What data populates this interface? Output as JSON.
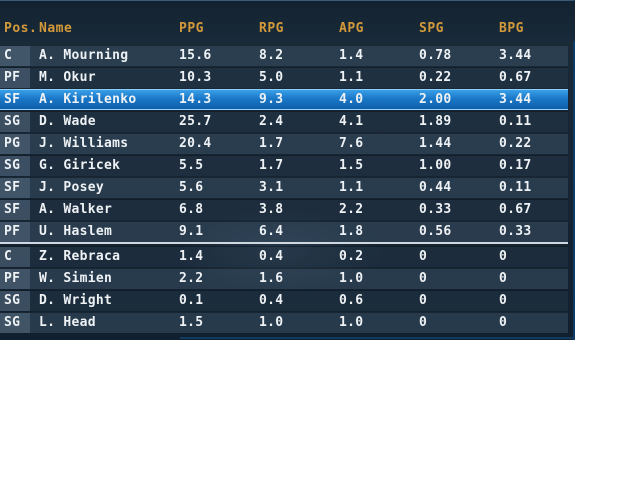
{
  "headers": {
    "pos": "Pos.",
    "name": "Name",
    "ppg": "PPG",
    "rpg": "RPG",
    "apg": "APG",
    "spg": "SPG",
    "bpg": "BPG"
  },
  "selected_index": 2,
  "colors": {
    "header_text": "#d49a3a",
    "selection": "#1a78c8",
    "row_text": "#eef2f5"
  },
  "rows": [
    {
      "pos": "C",
      "name": "A. Mourning",
      "ppg": "15.6",
      "rpg": "8.2",
      "apg": "1.4",
      "spg": "0.78",
      "bpg": "3.44"
    },
    {
      "pos": "PF",
      "name": "M. Okur",
      "ppg": "10.3",
      "rpg": "5.0",
      "apg": "1.1",
      "spg": "0.22",
      "bpg": "0.67"
    },
    {
      "pos": "SF",
      "name": "A. Kirilenko",
      "ppg": "14.3",
      "rpg": "9.3",
      "apg": "4.0",
      "spg": "2.00",
      "bpg": "3.44"
    },
    {
      "pos": "SG",
      "name": "D. Wade",
      "ppg": "25.7",
      "rpg": "2.4",
      "apg": "4.1",
      "spg": "1.89",
      "bpg": "0.11"
    },
    {
      "pos": "PG",
      "name": "J. Williams",
      "ppg": "20.4",
      "rpg": "1.7",
      "apg": "7.6",
      "spg": "1.44",
      "bpg": "0.22"
    },
    {
      "pos": "SG",
      "name": "G. Giricek",
      "ppg": "5.5",
      "rpg": "1.7",
      "apg": "1.5",
      "spg": "1.00",
      "bpg": "0.17"
    },
    {
      "pos": "SF",
      "name": "J. Posey",
      "ppg": "5.6",
      "rpg": "3.1",
      "apg": "1.1",
      "spg": "0.44",
      "bpg": "0.11"
    },
    {
      "pos": "SF",
      "name": "A. Walker",
      "ppg": "6.8",
      "rpg": "3.8",
      "apg": "2.2",
      "spg": "0.33",
      "bpg": "0.67"
    },
    {
      "pos": "PF",
      "name": "U. Haslem",
      "ppg": "9.1",
      "rpg": "6.4",
      "apg": "1.8",
      "spg": "0.56",
      "bpg": "0.33"
    },
    {
      "pos": "C",
      "name": "Z. Rebraca",
      "ppg": "1.4",
      "rpg": "0.4",
      "apg": "0.2",
      "spg": "0",
      "bpg": "0"
    },
    {
      "pos": "PF",
      "name": "W. Simien",
      "ppg": "2.2",
      "rpg": "1.6",
      "apg": "1.0",
      "spg": "0",
      "bpg": "0"
    },
    {
      "pos": "SG",
      "name": "D. Wright",
      "ppg": "0.1",
      "rpg": "0.4",
      "apg": "0.6",
      "spg": "0",
      "bpg": "0"
    },
    {
      "pos": "SG",
      "name": "L. Head",
      "ppg": "1.5",
      "rpg": "1.0",
      "apg": "1.0",
      "spg": "0",
      "bpg": "0"
    }
  ]
}
